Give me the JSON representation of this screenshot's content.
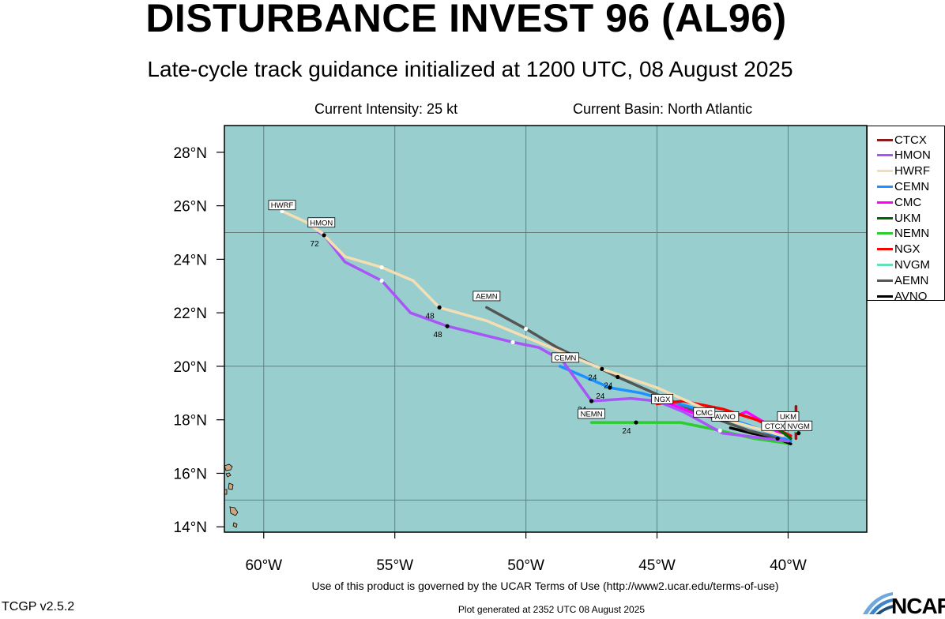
{
  "header": {
    "title": "DISTURBANCE INVEST 96 (AL96)",
    "subtitle": "Late-cycle track guidance initialized at 1200 UTC, 08 August 2025",
    "intensity": "Current Intensity: 25 kt",
    "basin": "Current Basin: North Atlantic"
  },
  "map": {
    "ocean_color": "#99cece",
    "land_color": "#c8a882",
    "lon_range": [
      -61.5,
      -37
    ],
    "lat_range": [
      13.8,
      29
    ],
    "lon_ticks": [
      {
        "lon": -60,
        "label": "60°W"
      },
      {
        "lon": -55,
        "label": "55°W"
      },
      {
        "lon": -50,
        "label": "50°W"
      },
      {
        "lon": -45,
        "label": "45°W"
      },
      {
        "lon": -40,
        "label": "40°W"
      }
    ],
    "lat_ticks": [
      {
        "lat": 28,
        "label": "28°N"
      },
      {
        "lat": 26,
        "label": "26°N"
      },
      {
        "lat": 24,
        "label": "24°N"
      },
      {
        "lat": 22,
        "label": "22°N"
      },
      {
        "lat": 20,
        "label": "20°N"
      },
      {
        "lat": 18,
        "label": "18°N"
      },
      {
        "lat": 16,
        "label": "16°N"
      },
      {
        "lat": 14,
        "label": "14°N"
      }
    ],
    "grid_lon": [
      -60,
      -55,
      -50,
      -45,
      -40
    ],
    "grid_lat": [
      25,
      20,
      15
    ]
  },
  "legend": [
    {
      "name": "CTCX",
      "color": "#8b1a1a"
    },
    {
      "name": "HMON",
      "color": "#a855f7"
    },
    {
      "name": "HWRF",
      "color": "#f5deb3"
    },
    {
      "name": "CEMN",
      "color": "#1e90ff"
    },
    {
      "name": "CMC",
      "color": "#ff00ff"
    },
    {
      "name": "UKM",
      "color": "#006400"
    },
    {
      "name": "NEMN",
      "color": "#2ecc2e"
    },
    {
      "name": "NGX",
      "color": "#ff0000"
    },
    {
      "name": "NVGM",
      "color": "#66e0b0"
    },
    {
      "name": "AEMN",
      "color": "#555555"
    },
    {
      "name": "AVNO",
      "color": "#000000"
    }
  ],
  "chart_data": {
    "type": "map-tracks",
    "tracks": [
      {
        "name": "NEMN",
        "color": "#2ecc2e",
        "points": [
          [
            -39.9,
            17.1
          ],
          [
            -41.3,
            17.3
          ],
          [
            -42.6,
            17.6
          ],
          [
            -44.1,
            17.9
          ],
          [
            -45.8,
            17.9
          ],
          [
            -47.5,
            17.9
          ]
        ],
        "markers": [
          {
            "pt": [
              -42.6,
              17.6
            ],
            "c": "w"
          },
          {
            "pt": [
              -45.8,
              17.9
            ],
            "c": "b",
            "tau": "24"
          }
        ],
        "label": {
          "pt": [
            -47.5,
            18.05
          ],
          "text": "NEMN"
        }
      },
      {
        "name": "AVNO",
        "color": "#000000",
        "points": [
          [
            -39.9,
            17.1
          ],
          [
            -40.4,
            17.3
          ],
          [
            -41.4,
            17.5
          ],
          [
            -42.2,
            17.7
          ]
        ],
        "markers": [
          {
            "pt": [
              -40.4,
              17.3
            ],
            "c": "b"
          }
        ],
        "label": {
          "pt": [
            -42.4,
            17.95
          ],
          "text": "AVNO"
        }
      },
      {
        "name": "AEMN",
        "color": "#555555",
        "points": [
          [
            -39.9,
            17.2
          ],
          [
            -41.5,
            17.6
          ],
          [
            -43.5,
            18.3
          ],
          [
            -46.5,
            19.6
          ],
          [
            -48.8,
            20.7
          ],
          [
            -50.0,
            21.4
          ],
          [
            -51.5,
            22.2
          ]
        ],
        "markers": [
          {
            "pt": [
              -46.5,
              19.6
            ],
            "c": "b",
            "tau": "24"
          },
          {
            "pt": [
              -50.0,
              21.4
            ],
            "c": "w"
          }
        ],
        "label": {
          "pt": [
            -51.5,
            22.45
          ],
          "text": "AEMN"
        }
      },
      {
        "name": "CEMN",
        "color": "#1e90ff",
        "points": [
          [
            -39.9,
            17.2
          ],
          [
            -41.5,
            17.8
          ],
          [
            -43.8,
            18.5
          ],
          [
            -45.6,
            19.0
          ],
          [
            -46.8,
            19.2
          ],
          [
            -48.7,
            20.0
          ]
        ],
        "markers": [
          {
            "pt": [
              -46.8,
              19.2
            ],
            "c": "b",
            "tau": "24"
          }
        ],
        "label": {
          "pt": [
            -48.5,
            20.15
          ],
          "text": "CEMN"
        }
      },
      {
        "name": "CMC",
        "color": "#ff00ff",
        "points": [
          [
            -40.2,
            17.4
          ],
          [
            -40.9,
            17.9
          ],
          [
            -41.6,
            18.3
          ],
          [
            -42.3,
            18.0
          ],
          [
            -43.5,
            18.2
          ],
          [
            -44.5,
            18.6
          ],
          [
            -45.0,
            18.7
          ]
        ],
        "markers": [
          {
            "pt": [
              -43.3,
              18.3
            ],
            "c": "w"
          }
        ],
        "label": {
          "pt": [
            -43.2,
            18.1
          ],
          "text": "CMC"
        }
      },
      {
        "name": "NGX",
        "color": "#ff0000",
        "points": [
          [
            -39.9,
            17.4
          ],
          [
            -41.2,
            18.0
          ],
          [
            -42.5,
            18.4
          ],
          [
            -44.0,
            18.7
          ],
          [
            -45.0,
            18.6
          ]
        ],
        "markers": [],
        "label": {
          "pt": [
            -44.8,
            18.6
          ],
          "text": "NGX"
        }
      },
      {
        "name": "CTCX",
        "color": "#8b1a1a",
        "points": [
          [
            -39.7,
            17.3
          ],
          [
            -39.7,
            18.5
          ]
        ],
        "markers": [],
        "label": {
          "pt": [
            -40.5,
            17.6
          ],
          "text": "CTCX"
        }
      },
      {
        "name": "UKM",
        "color": "#006400",
        "points": [
          [
            -39.9,
            17.3
          ],
          [
            -40.3,
            17.6
          ]
        ],
        "markers": [],
        "label": {
          "pt": [
            -40.0,
            17.95
          ],
          "text": "UKM"
        }
      },
      {
        "name": "NVGM",
        "color": "#66e0b0",
        "points": [
          [
            -39.6,
            17.5
          ],
          [
            -40.1,
            17.9
          ]
        ],
        "markers": [
          {
            "pt": [
              -39.6,
              17.5
            ],
            "c": "b"
          }
        ],
        "label": {
          "pt": [
            -39.6,
            17.6
          ],
          "text": "NVGM"
        }
      },
      {
        "name": "HMON",
        "color": "#a855f7",
        "points": [
          [
            -40.0,
            17.2
          ],
          [
            -42.5,
            17.5
          ],
          [
            -44.0,
            18.3
          ],
          [
            -45.0,
            18.7
          ],
          [
            -46.0,
            18.8
          ],
          [
            -47.5,
            18.7
          ],
          [
            -48.6,
            20.2
          ],
          [
            -49.5,
            20.7
          ],
          [
            -50.5,
            20.9
          ],
          [
            -53.0,
            21.5
          ],
          [
            -54.4,
            22.0
          ],
          [
            -55.5,
            23.2
          ],
          [
            -56.9,
            23.9
          ],
          [
            -57.7,
            24.9
          ],
          [
            -57.9,
            25.0
          ]
        ],
        "markers": [
          {
            "pt": [
              -47.5,
              18.7
            ],
            "c": "b",
            "tau": "24"
          },
          {
            "pt": [
              -50.5,
              20.9
            ],
            "c": "w"
          },
          {
            "pt": [
              -53.0,
              21.5
            ],
            "c": "b",
            "tau": "48"
          },
          {
            "pt": [
              -55.5,
              23.2
            ],
            "c": "w"
          },
          {
            "pt": [
              -57.7,
              24.9
            ],
            "c": "b",
            "tau": "72"
          }
        ],
        "label": {
          "pt": [
            -57.8,
            25.2
          ],
          "text": "HMON"
        }
      },
      {
        "name": "HWRF",
        "color": "#f5deb3",
        "points": [
          [
            -40.2,
            17.4
          ],
          [
            -42.0,
            17.9
          ],
          [
            -45.0,
            19.2
          ],
          [
            -47.1,
            19.9
          ],
          [
            -48.8,
            20.6
          ],
          [
            -51.5,
            21.7
          ],
          [
            -53.3,
            22.2
          ],
          [
            -54.3,
            23.2
          ],
          [
            -55.5,
            23.7
          ],
          [
            -56.9,
            24.1
          ],
          [
            -57.8,
            25.0
          ],
          [
            -58.4,
            25.4
          ],
          [
            -59.3,
            25.8
          ]
        ],
        "markers": [
          {
            "pt": [
              -47.1,
              19.9
            ],
            "c": "b",
            "tau": "24"
          },
          {
            "pt": [
              -53.3,
              22.2
            ],
            "c": "b",
            "tau": "48"
          },
          {
            "pt": [
              -55.5,
              23.7
            ],
            "c": "w"
          },
          {
            "pt": [
              -59.3,
              25.8
            ],
            "c": "w"
          }
        ],
        "label": {
          "pt": [
            -59.3,
            25.85
          ],
          "text": "HWRF"
        }
      }
    ]
  },
  "footer": {
    "terms": "Use of this product is governed by the UCAR Terms of Use (http://www2.ucar.edu/terms-of-use)",
    "version": "TCGP v2.5.2",
    "generated": "Plot generated at 2352 UTC   08 August 2025",
    "logo_text": "NCAR"
  }
}
